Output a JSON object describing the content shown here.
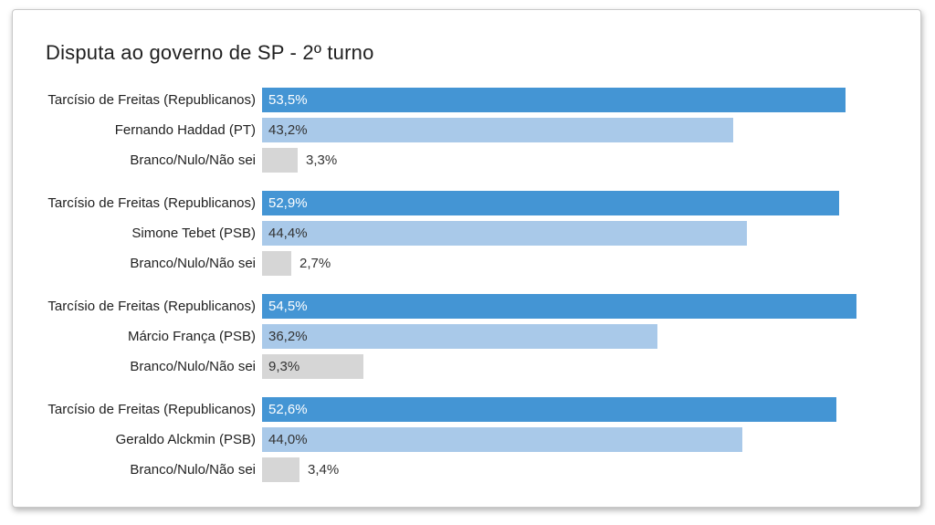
{
  "chart_data": {
    "type": "bar",
    "orientation": "horizontal",
    "title": "Disputa ao governo de SP - 2º turno",
    "unit": "percent",
    "value_format": "comma-decimal",
    "xlim": [
      0,
      54.5
    ],
    "grid": false,
    "legend": false,
    "colors": {
      "main": "#4495d4",
      "opponent": "#a9c9e9",
      "neutral": "#d6d6d6"
    },
    "groups": [
      {
        "rows": [
          {
            "label": "Tarcísio de Freitas (Republicanos)",
            "value": 53.5,
            "display": "53,5%",
            "color_role": "main"
          },
          {
            "label": "Fernando Haddad (PT)",
            "value": 43.2,
            "display": "43,2%",
            "color_role": "opponent"
          },
          {
            "label": "Branco/Nulo/Não sei",
            "value": 3.3,
            "display": "3,3%",
            "color_role": "neutral"
          }
        ]
      },
      {
        "rows": [
          {
            "label": "Tarcísio de Freitas (Republicanos)",
            "value": 52.9,
            "display": "52,9%",
            "color_role": "main"
          },
          {
            "label": "Simone Tebet (PSB)",
            "value": 44.4,
            "display": "44,4%",
            "color_role": "opponent"
          },
          {
            "label": "Branco/Nulo/Não sei",
            "value": 2.7,
            "display": "2,7%",
            "color_role": "neutral"
          }
        ]
      },
      {
        "rows": [
          {
            "label": "Tarcísio de Freitas (Republicanos)",
            "value": 54.5,
            "display": "54,5%",
            "color_role": "main"
          },
          {
            "label": "Márcio França (PSB)",
            "value": 36.2,
            "display": "36,2%",
            "color_role": "opponent"
          },
          {
            "label": "Branco/Nulo/Não sei",
            "value": 9.3,
            "display": "9,3%",
            "color_role": "neutral"
          }
        ]
      },
      {
        "rows": [
          {
            "label": "Tarcísio de Freitas (Republicanos)",
            "value": 52.6,
            "display": "52,6%",
            "color_role": "main"
          },
          {
            "label": "Geraldo Alckmin (PSB)",
            "value": 44.0,
            "display": "44,0%",
            "color_role": "opponent"
          },
          {
            "label": "Branco/Nulo/Não sei",
            "value": 3.4,
            "display": "3,4%",
            "color_role": "neutral"
          }
        ]
      }
    ]
  }
}
